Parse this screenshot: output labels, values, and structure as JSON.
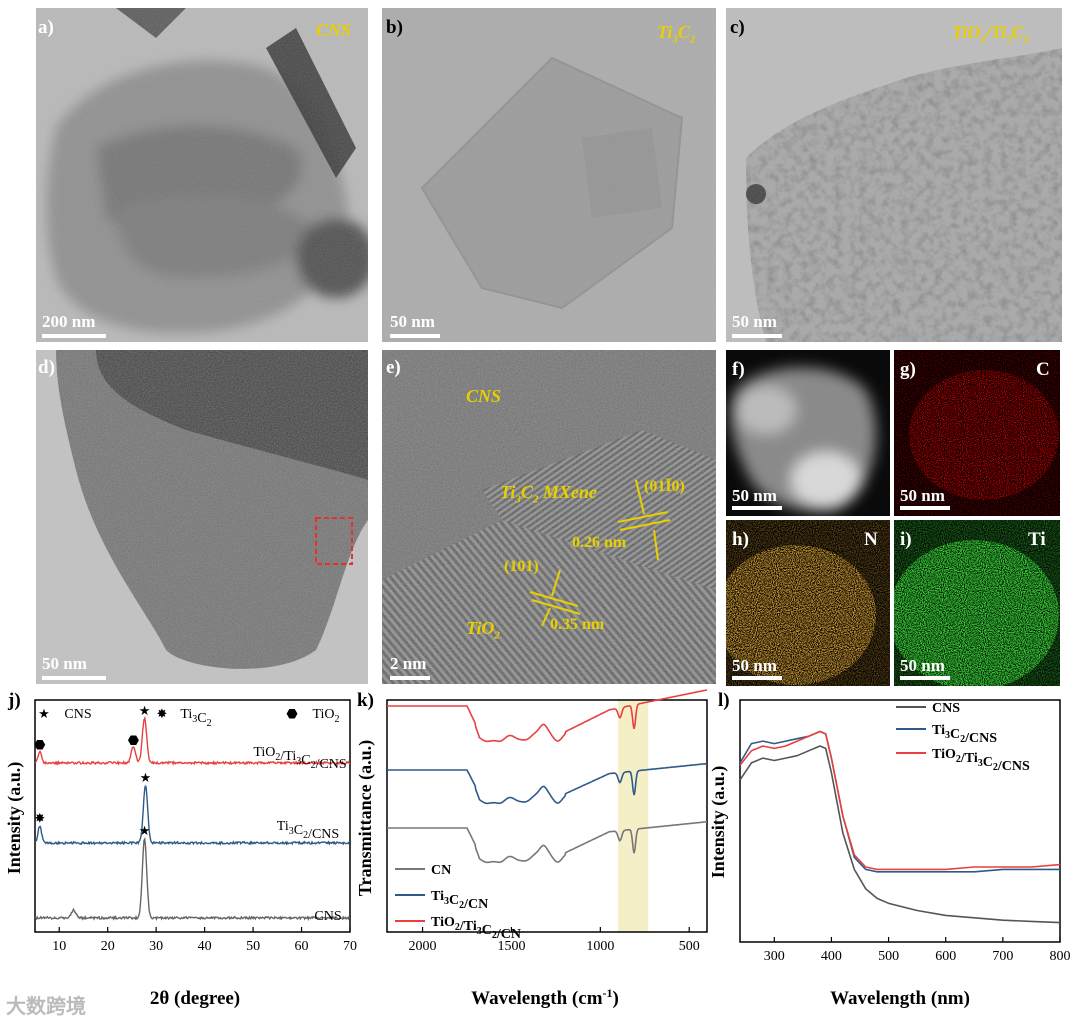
{
  "panels": {
    "a": {
      "label": "a)",
      "material": "CNS",
      "scale": "200 nm"
    },
    "b": {
      "label": "b)",
      "material": "Ti3C2",
      "scale": "50 nm"
    },
    "c": {
      "label": "c)",
      "material": "TiO2/Ti3C2",
      "scale": "50 nm"
    },
    "d": {
      "label": "d)",
      "scale": "50 nm"
    },
    "e": {
      "label": "e)",
      "scale": "2 nm",
      "annotations": {
        "cns": "CNS",
        "mxene": "Ti3C2 MXene",
        "plane1": "(01Ī0)",
        "d1": "0.26 nm",
        "plane2": "(101)",
        "d2": "0.35 nm",
        "tio2": "TiO2"
      }
    },
    "f": {
      "label": "f)",
      "scale": "50 nm"
    },
    "g": {
      "label": "g)",
      "element": "C",
      "scale": "50 nm"
    },
    "h": {
      "label": "h)",
      "element": "N",
      "scale": "50 nm"
    },
    "i": {
      "label": "i)",
      "element": "Ti",
      "scale": "50 nm"
    }
  },
  "xrd": {
    "label": "j)",
    "legend": [
      {
        "symbol": "★",
        "name": "CNS"
      },
      {
        "symbol": "✸",
        "name": "Ti3C2"
      },
      {
        "symbol": "⬣",
        "name": "TiO2"
      }
    ],
    "ylabel": "Intensity (a.u.)",
    "xlabel": "2θ (degree)"
  },
  "ftir": {
    "label": "k)",
    "ylabel": "Transmittance (a.u.)",
    "xlabel": "Wavelength (cm-1)"
  },
  "uv": {
    "label": "l)",
    "ylabel": "Intensity (a.u.)",
    "xlabel": "Wavelength (nm)"
  },
  "chart_data": [
    {
      "type": "line",
      "panel": "j",
      "xlabel": "2θ (degree)",
      "ylabel": "Intensity (a.u.)",
      "xlim": [
        5,
        70
      ],
      "xticks": [
        10,
        20,
        30,
        40,
        50,
        60,
        70
      ],
      "colors": {
        "TiO2/Ti3C2/CNS": "#e8403f",
        "Ti3C2/CNS": "#2e5a8a",
        "CNS": "#666666"
      },
      "series": [
        {
          "name": "TiO2/Ti3C2/CNS",
          "peaks": [
            {
              "x": 6.0,
              "h": 0.25,
              "marker": "TiO2"
            },
            {
              "x": 25.3,
              "h": 0.35,
              "marker": "TiO2"
            },
            {
              "x": 27.6,
              "h": 1.0,
              "marker": "CNS"
            }
          ]
        },
        {
          "name": "Ti3C2/CNS",
          "peaks": [
            {
              "x": 6.0,
              "h": 0.3,
              "marker": "Ti3C2"
            },
            {
              "x": 27.8,
              "h": 1.0,
              "marker": "CNS"
            }
          ]
        },
        {
          "name": "CNS",
          "peaks": [
            {
              "x": 13.0,
              "h": 0.1
            },
            {
              "x": 27.6,
              "h": 1.0,
              "marker": "CNS"
            }
          ]
        }
      ]
    },
    {
      "type": "line",
      "panel": "k",
      "xlabel": "Wavelength (cm-1)",
      "ylabel": "Transmittance (a.u.)",
      "xlim": [
        2200,
        400
      ],
      "xticks": [
        2000,
        1500,
        1000,
        500
      ],
      "highlight": [
        900,
        730
      ],
      "series": [
        {
          "name": "CN",
          "color": "#777777"
        },
        {
          "name": "Ti3C2/CN",
          "color": "#2e5a8a"
        },
        {
          "name": "TiO2/Ti3C2/CN",
          "color": "#e8403f"
        }
      ],
      "bands": [
        1640,
        1560,
        1460,
        1410,
        1320,
        1240,
        810
      ]
    },
    {
      "type": "line",
      "panel": "l",
      "xlabel": "Wavelength (nm)",
      "ylabel": "Intensity (a.u.)",
      "xlim": [
        240,
        800
      ],
      "xticks": [
        300,
        400,
        500,
        600,
        700,
        800
      ],
      "series": [
        {
          "name": "CNS",
          "color": "#555555",
          "x": [
            240,
            260,
            280,
            300,
            320,
            340,
            360,
            380,
            390,
            400,
            420,
            440,
            460,
            480,
            500,
            550,
            600,
            650,
            700,
            750,
            800
          ],
          "y": [
            0.67,
            0.74,
            0.76,
            0.75,
            0.76,
            0.77,
            0.79,
            0.81,
            0.8,
            0.7,
            0.45,
            0.3,
            0.22,
            0.18,
            0.16,
            0.13,
            0.11,
            0.1,
            0.09,
            0.085,
            0.08
          ]
        },
        {
          "name": "Ti3C2/CNS",
          "color": "#2e5a8a",
          "x": [
            240,
            260,
            280,
            300,
            320,
            340,
            360,
            380,
            390,
            400,
            420,
            440,
            460,
            480,
            500,
            550,
            600,
            650,
            700,
            750,
            800
          ],
          "y": [
            0.74,
            0.82,
            0.83,
            0.82,
            0.83,
            0.84,
            0.85,
            0.87,
            0.86,
            0.76,
            0.52,
            0.35,
            0.3,
            0.29,
            0.29,
            0.29,
            0.29,
            0.29,
            0.3,
            0.3,
            0.3
          ]
        },
        {
          "name": "TiO2/Ti3C2/CNS",
          "color": "#e8403f",
          "x": [
            240,
            260,
            280,
            300,
            320,
            340,
            360,
            380,
            390,
            400,
            420,
            440,
            460,
            480,
            500,
            550,
            600,
            650,
            700,
            750,
            800
          ],
          "y": [
            0.73,
            0.79,
            0.81,
            0.8,
            0.81,
            0.83,
            0.85,
            0.87,
            0.86,
            0.76,
            0.52,
            0.36,
            0.31,
            0.3,
            0.3,
            0.3,
            0.3,
            0.31,
            0.31,
            0.31,
            0.32
          ]
        }
      ]
    }
  ],
  "watermark": "大数跨境"
}
